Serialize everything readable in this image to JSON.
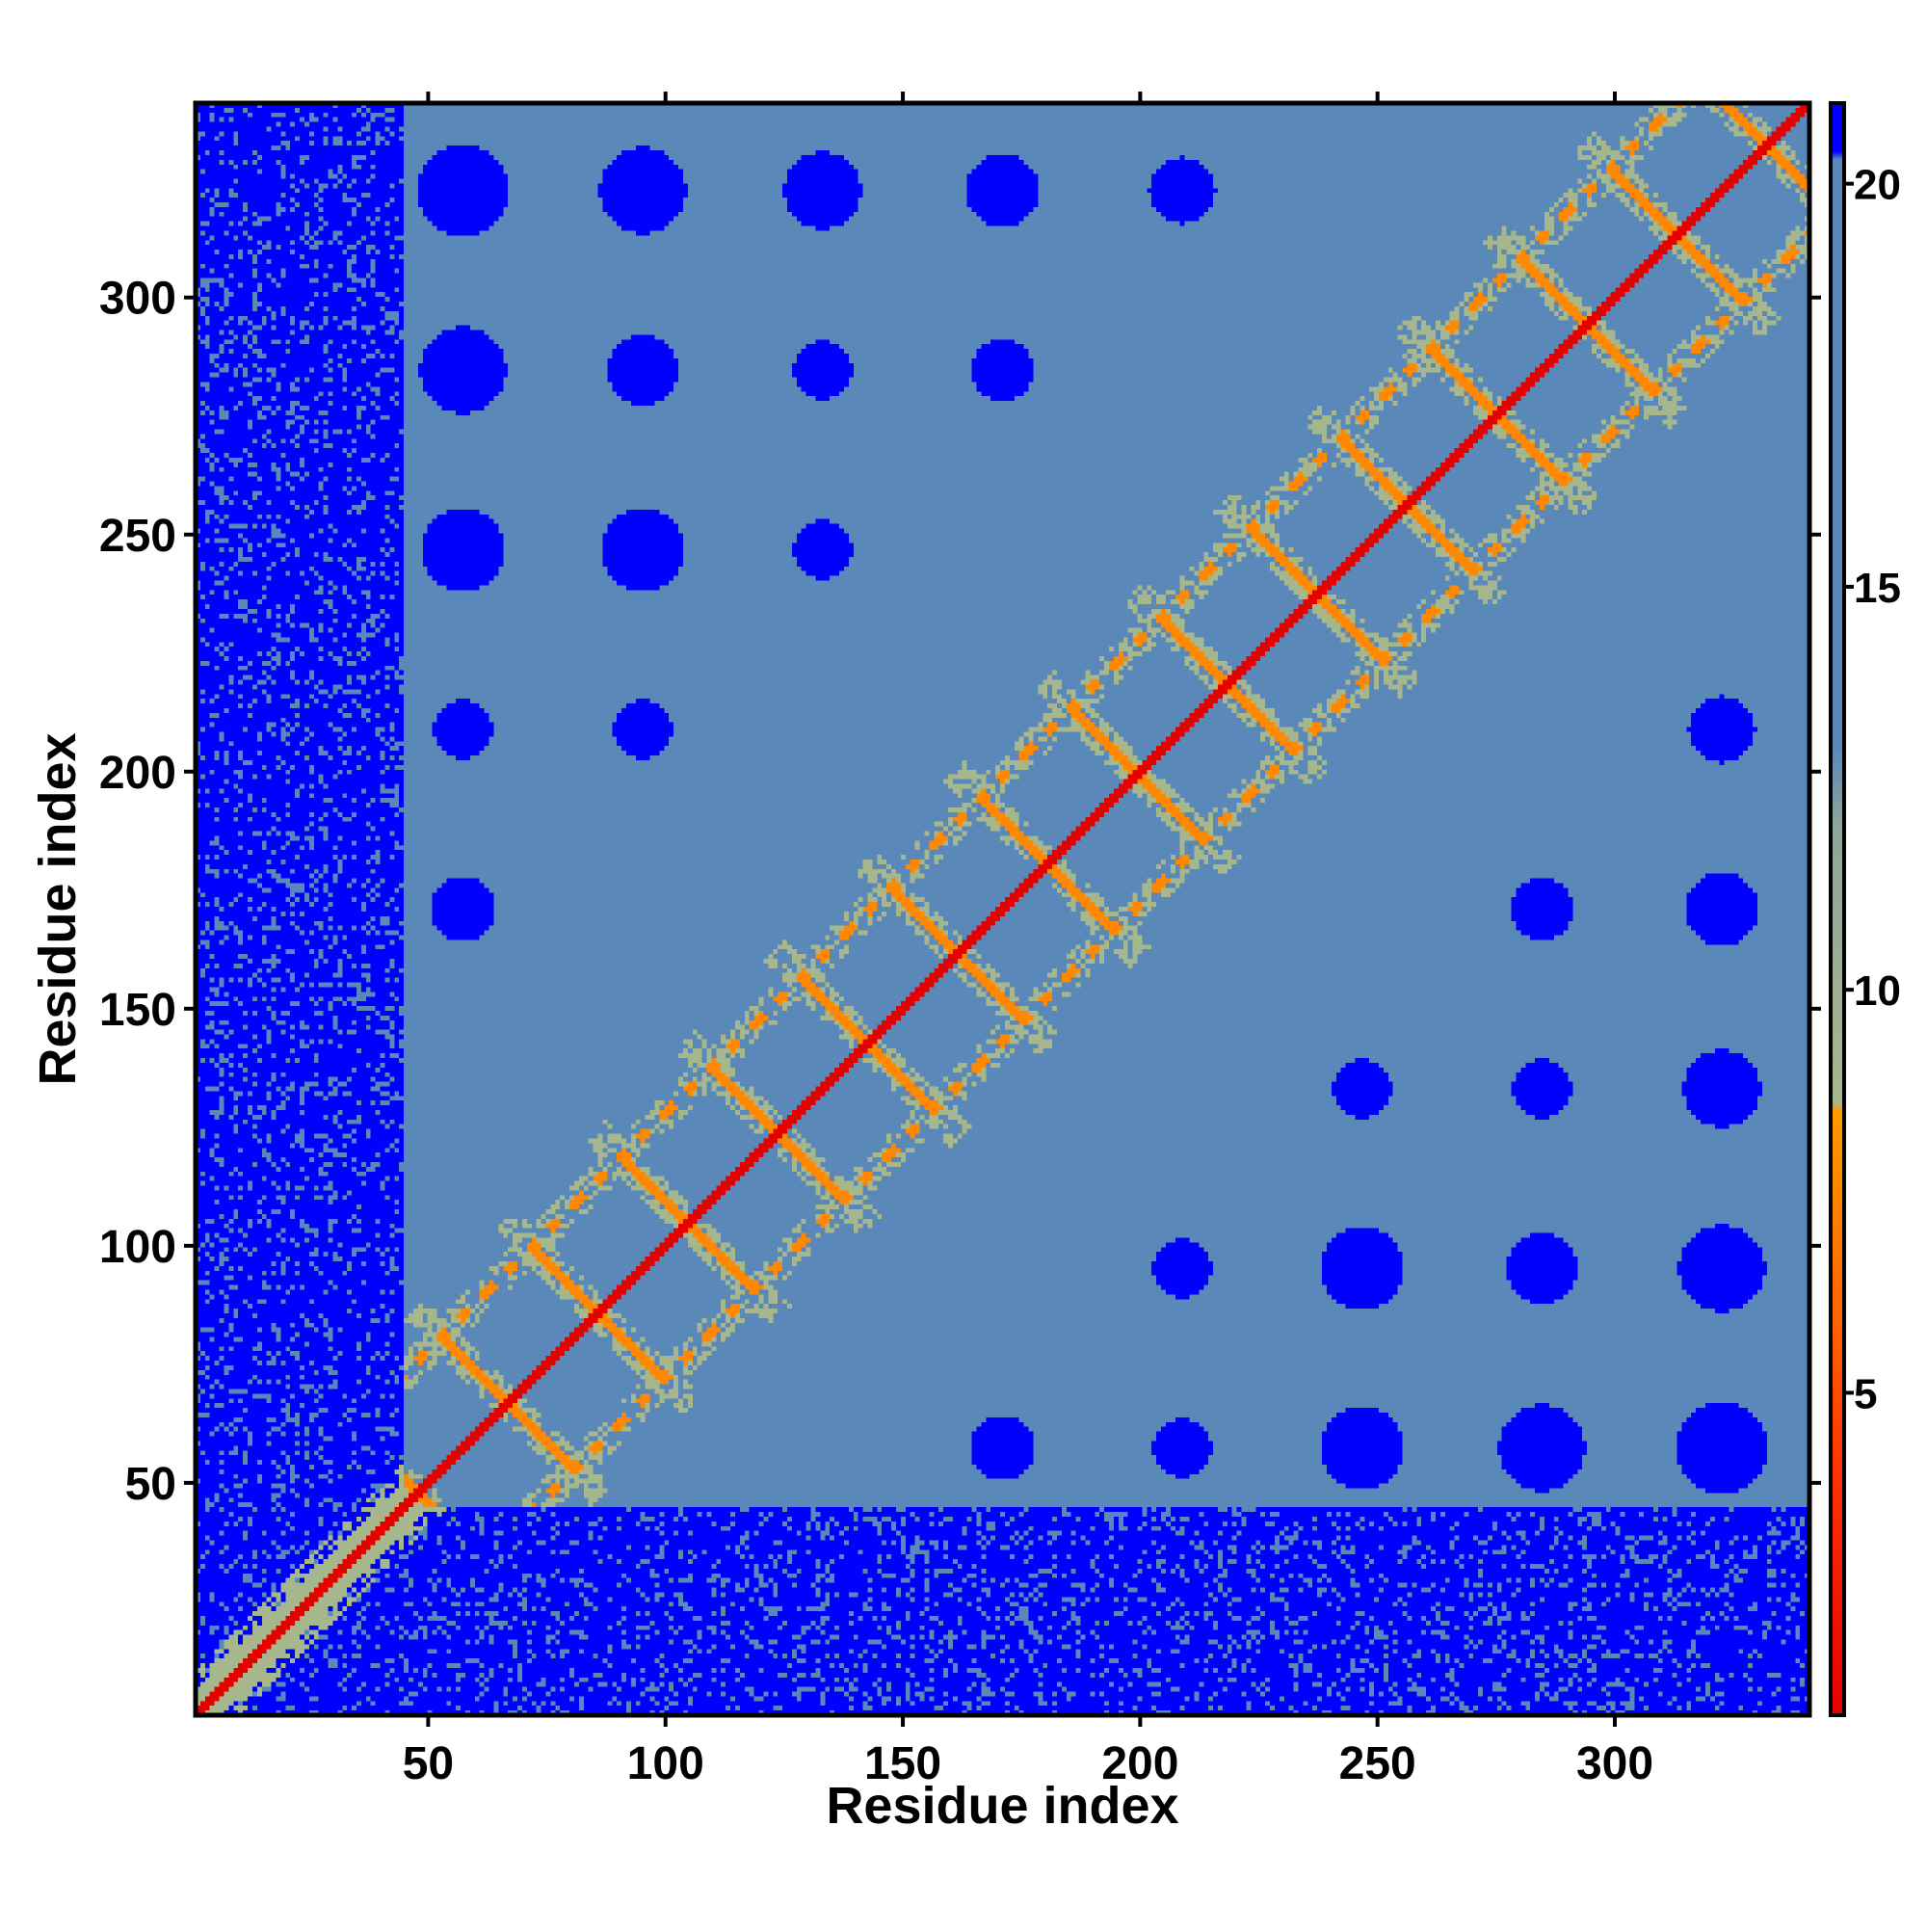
{
  "chart_data": {
    "type": "heatmap",
    "title": "",
    "xlabel": "Residue index",
    "ylabel": "Residue index",
    "xlim": [
      1,
      341
    ],
    "ylim": [
      1,
      341
    ],
    "xticks": [
      50,
      100,
      150,
      200,
      250,
      300
    ],
    "yticks": [
      50,
      100,
      150,
      200,
      250,
      300
    ],
    "matrix_description": "symmetric residue-residue distance map; red diagonal, orange/green repeating helix-contact X motifs near diagonal, steel-blue background with periodic blue blobs; residues 1-45 mostly blue (far)",
    "diagonal_period": 38,
    "n_residues": 341,
    "colorbar": {
      "min": 1,
      "max": 21,
      "ticks": [
        5,
        10,
        15,
        20
      ],
      "stops": [
        {
          "value": 1,
          "color": "#e60000"
        },
        {
          "value": 4,
          "color": "#ff3300"
        },
        {
          "value": 6,
          "color": "#ff6600"
        },
        {
          "value": 8.5,
          "color": "#ff9900"
        },
        {
          "value": 8.6,
          "color": "#a6b78d"
        },
        {
          "value": 12,
          "color": "#8fa69a"
        },
        {
          "value": 13,
          "color": "#5a88b8"
        },
        {
          "value": 20.3,
          "color": "#5a88b8"
        },
        {
          "value": 20.4,
          "color": "#0000ff"
        },
        {
          "value": 21,
          "color": "#0000ff"
        }
      ]
    },
    "colors": {
      "diagonal": "#e60000",
      "contact": "#ff8800",
      "mid": "#a6b78d",
      "background": "#5a88b8",
      "far": "#0000ff"
    }
  }
}
